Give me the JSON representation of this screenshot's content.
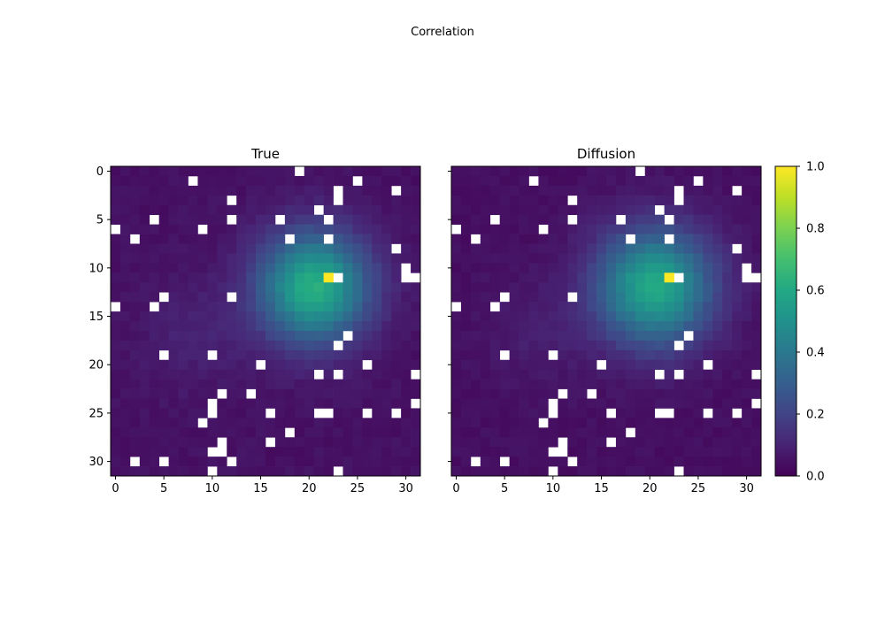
{
  "figure": {
    "suptitle": "Correlation"
  },
  "chart_data": [
    {
      "type": "heatmap",
      "title": "True",
      "grid_size": [
        32,
        32
      ],
      "xlim": [
        -0.5,
        31.5
      ],
      "ylim": [
        31.5,
        -0.5
      ],
      "xticks": [
        0,
        5,
        10,
        15,
        20,
        25,
        30
      ],
      "yticks": [
        0,
        5,
        10,
        15,
        20,
        25,
        30
      ],
      "colormap": "viridis",
      "background_value": 0.03,
      "peak": {
        "row": 11,
        "col": 22,
        "value": 1.0
      },
      "blob": {
        "center_row": 12,
        "center_col": 20.5,
        "sigma": 4.0,
        "amplitude": 0.58
      },
      "faint_band": {
        "center_row": 17,
        "center_col": 8,
        "sigma": 4,
        "amplitude": 0.05
      },
      "missing_cells": [
        [
          0,
          19
        ],
        [
          1,
          8
        ],
        [
          1,
          25
        ],
        [
          2,
          23
        ],
        [
          2,
          29
        ],
        [
          3,
          12
        ],
        [
          3,
          23
        ],
        [
          4,
          21
        ],
        [
          5,
          4
        ],
        [
          5,
          12
        ],
        [
          5,
          17
        ],
        [
          5,
          22
        ],
        [
          6,
          0
        ],
        [
          6,
          9
        ],
        [
          7,
          2
        ],
        [
          7,
          18
        ],
        [
          7,
          22
        ],
        [
          8,
          29
        ],
        [
          10,
          30
        ],
        [
          11,
          23
        ],
        [
          11,
          30
        ],
        [
          11,
          31
        ],
        [
          13,
          5
        ],
        [
          13,
          12
        ],
        [
          14,
          0
        ],
        [
          14,
          4
        ],
        [
          17,
          24
        ],
        [
          18,
          23
        ],
        [
          19,
          5
        ],
        [
          19,
          10
        ],
        [
          20,
          15
        ],
        [
          20,
          26
        ],
        [
          21,
          21
        ],
        [
          21,
          23
        ],
        [
          21,
          31
        ],
        [
          23,
          11
        ],
        [
          23,
          14
        ],
        [
          24,
          10
        ],
        [
          24,
          31
        ],
        [
          25,
          10
        ],
        [
          25,
          16
        ],
        [
          25,
          21
        ],
        [
          25,
          22
        ],
        [
          25,
          26
        ],
        [
          25,
          29
        ],
        [
          26,
          9
        ],
        [
          27,
          18
        ],
        [
          28,
          11
        ],
        [
          28,
          16
        ],
        [
          29,
          10
        ],
        [
          29,
          11
        ],
        [
          30,
          2
        ],
        [
          30,
          5
        ],
        [
          30,
          12
        ],
        [
          31,
          10
        ],
        [
          31,
          23
        ]
      ]
    },
    {
      "type": "heatmap",
      "title": "Diffusion",
      "grid_size": [
        32,
        32
      ],
      "xlim": [
        -0.5,
        31.5
      ],
      "ylim": [
        31.5,
        -0.5
      ],
      "xticks": [
        0,
        5,
        10,
        15,
        20,
        25,
        30
      ],
      "yticks": [],
      "colormap": "viridis",
      "background_value": 0.025,
      "peak": {
        "row": 11,
        "col": 22,
        "value": 1.0
      },
      "blob": {
        "center_row": 12,
        "center_col": 20.5,
        "sigma": 4.2,
        "amplitude": 0.56
      },
      "faint_band": {
        "center_row": 17,
        "center_col": 8,
        "sigma": 4,
        "amplitude": 0.04
      },
      "missing_cells": [
        [
          0,
          19
        ],
        [
          1,
          8
        ],
        [
          1,
          25
        ],
        [
          2,
          23
        ],
        [
          2,
          29
        ],
        [
          3,
          12
        ],
        [
          3,
          23
        ],
        [
          4,
          21
        ],
        [
          5,
          4
        ],
        [
          5,
          12
        ],
        [
          5,
          17
        ],
        [
          5,
          22
        ],
        [
          6,
          0
        ],
        [
          6,
          9
        ],
        [
          7,
          2
        ],
        [
          7,
          18
        ],
        [
          7,
          22
        ],
        [
          8,
          29
        ],
        [
          10,
          30
        ],
        [
          11,
          23
        ],
        [
          11,
          30
        ],
        [
          11,
          31
        ],
        [
          13,
          5
        ],
        [
          13,
          12
        ],
        [
          14,
          0
        ],
        [
          14,
          4
        ],
        [
          17,
          24
        ],
        [
          18,
          23
        ],
        [
          19,
          5
        ],
        [
          19,
          10
        ],
        [
          20,
          15
        ],
        [
          20,
          26
        ],
        [
          21,
          21
        ],
        [
          21,
          23
        ],
        [
          21,
          31
        ],
        [
          23,
          11
        ],
        [
          23,
          14
        ],
        [
          24,
          10
        ],
        [
          24,
          31
        ],
        [
          25,
          10
        ],
        [
          25,
          16
        ],
        [
          25,
          21
        ],
        [
          25,
          22
        ],
        [
          25,
          26
        ],
        [
          25,
          29
        ],
        [
          26,
          9
        ],
        [
          27,
          18
        ],
        [
          28,
          11
        ],
        [
          28,
          16
        ],
        [
          29,
          10
        ],
        [
          29,
          11
        ],
        [
          30,
          2
        ],
        [
          30,
          5
        ],
        [
          30,
          12
        ],
        [
          31,
          10
        ],
        [
          31,
          23
        ]
      ]
    }
  ],
  "colorbar": {
    "min": 0.0,
    "max": 1.0,
    "tick_labels": [
      "0.0",
      "0.2",
      "0.4",
      "0.6",
      "0.8",
      "1.0"
    ],
    "tick_values": [
      0.0,
      0.2,
      0.4,
      0.6,
      0.8,
      1.0
    ],
    "colormap": "viridis"
  }
}
